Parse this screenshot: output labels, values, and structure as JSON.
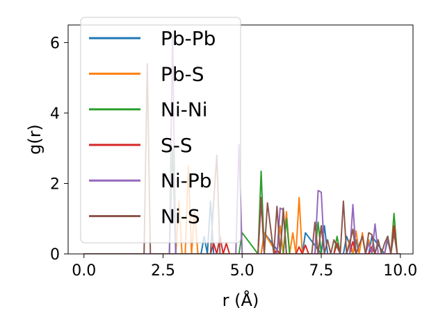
{
  "chart_data": {
    "type": "line",
    "xlabel": "r (Å)",
    "ylabel": "g(r)",
    "xlim": [
      -0.5,
      10.4
    ],
    "ylim": [
      0,
      6.5
    ],
    "xticks": [
      0.0,
      2.5,
      5.0,
      7.5,
      10.0
    ],
    "xtick_labels": [
      "0.0",
      "2.5",
      "5.0",
      "7.5",
      "10.0"
    ],
    "yticks": [
      0,
      2,
      4,
      6
    ],
    "ytick_labels": [
      "0",
      "2",
      "4",
      "6"
    ],
    "legend_position": "upper-left",
    "series": [
      {
        "name": "Pb-Pb",
        "color": "#1f77b4",
        "x": [
          0.0,
          3.7,
          3.8,
          3.9,
          4.0,
          4.1,
          4.2,
          5.6,
          5.7,
          6.2,
          6.3,
          6.4,
          6.9,
          7.0,
          7.5,
          7.6,
          7.7,
          8.2,
          8.3,
          8.5,
          8.6,
          8.7,
          9.0,
          9.1,
          9.5,
          9.6,
          9.7,
          10.0
        ],
        "values": [
          0,
          0,
          0.5,
          0,
          1.5,
          0,
          0,
          0,
          0.6,
          0,
          1.2,
          0,
          0,
          0.6,
          0,
          0.8,
          0,
          0,
          0.5,
          0,
          0.4,
          0,
          0,
          0.5,
          0,
          0.4,
          0,
          0
        ]
      },
      {
        "name": "Pb-S",
        "color": "#ff7f0e",
        "x": [
          0.0,
          2.9,
          3.0,
          3.1,
          3.2,
          3.3,
          3.4,
          3.5,
          3.6,
          3.7,
          5.6,
          5.7,
          6.1,
          6.2,
          6.3,
          6.4,
          6.5,
          6.6,
          6.7,
          6.8,
          6.9,
          7.4,
          7.5,
          7.6,
          7.7,
          8.3,
          8.4,
          8.5,
          8.6,
          8.7,
          8.8,
          8.9,
          9.0,
          9.1,
          9.5,
          9.6,
          9.7,
          9.8,
          10.0
        ],
        "values": [
          0,
          0,
          1.5,
          0,
          0,
          2.5,
          0,
          1.2,
          0,
          0,
          0,
          0.6,
          0,
          0.8,
          0,
          1.2,
          0,
          0.6,
          0,
          1.6,
          0,
          0,
          0.8,
          0,
          0,
          0,
          0.4,
          0,
          0.65,
          0,
          0.6,
          0,
          0.4,
          0,
          0,
          0.5,
          0,
          0,
          0
        ]
      },
      {
        "name": "Ni-Ni",
        "color": "#2ca02c",
        "x": [
          0.0,
          2.7,
          2.8,
          2.9,
          4.9,
          5.0,
          5.5,
          5.6,
          5.7,
          6.3,
          6.4,
          6.5,
          7.3,
          7.4,
          7.5,
          7.9,
          8.0,
          8.1,
          9.7,
          9.8,
          9.9,
          10.0
        ],
        "values": [
          0,
          0,
          3.0,
          0,
          0,
          0.6,
          0,
          2.35,
          0,
          0,
          1.0,
          0,
          0,
          0.9,
          0,
          0,
          0.5,
          0,
          0,
          1.15,
          0,
          0
        ]
      },
      {
        "name": "S-S",
        "color": "#d62728",
        "x": [
          0.0,
          4.0,
          4.1,
          4.2,
          4.3,
          4.4,
          4.5,
          4.6,
          5.5,
          5.6,
          5.7,
          6.0,
          6.1,
          6.2,
          6.7,
          6.8,
          6.9,
          7.0,
          7.1,
          7.2,
          7.9,
          8.0,
          8.1,
          8.4,
          8.5,
          8.6,
          9.0,
          9.1,
          9.2,
          9.7,
          9.8,
          9.9,
          10.0
        ],
        "values": [
          0,
          0,
          0.3,
          0,
          0.5,
          0,
          0.3,
          0,
          0,
          1.5,
          0,
          0,
          0.1,
          0,
          0,
          0.2,
          0,
          0.25,
          0,
          0,
          0,
          0.3,
          0,
          0,
          0.35,
          0,
          0,
          0.2,
          0,
          0,
          0.8,
          0,
          0
        ]
      },
      {
        "name": "Ni-Pb",
        "color": "#9467bd",
        "x": [
          0.0,
          2.7,
          2.8,
          2.9,
          4.8,
          4.9,
          5.0,
          6.1,
          6.2,
          6.3,
          6.4,
          7.3,
          7.4,
          7.5,
          7.6,
          8.4,
          8.5,
          8.6,
          8.9,
          9.0,
          9.1,
          9.2,
          9.3,
          9.5,
          9.6,
          9.7,
          10.0
        ],
        "values": [
          0,
          0,
          6.2,
          0,
          0,
          3.1,
          0,
          0,
          1.3,
          1.25,
          0,
          0,
          1.8,
          1.75,
          0,
          0,
          1.4,
          0,
          0,
          0.3,
          0,
          0.85,
          0,
          0,
          0.5,
          0,
          0
        ]
      },
      {
        "name": "Ni-S",
        "color": "#8c564b",
        "x": [
          0.0,
          1.9,
          2.0,
          2.1,
          2.2,
          4.0,
          4.1,
          4.2,
          4.3,
          4.4,
          5.5,
          5.6,
          5.7,
          5.8,
          6.0,
          6.1,
          6.2,
          6.3,
          6.4,
          7.2,
          7.3,
          7.4,
          7.5,
          7.6,
          7.7,
          7.8,
          7.9,
          8.1,
          8.2,
          8.3,
          8.4,
          8.5,
          8.6,
          8.8,
          8.9,
          9.0,
          9.1,
          9.2,
          9.3,
          9.4,
          9.5,
          9.6,
          9.7,
          9.8,
          9.9,
          10.0
        ],
        "values": [
          0,
          0,
          5.4,
          0,
          0,
          0,
          1.5,
          2.8,
          0,
          0,
          0,
          1.6,
          0,
          1.45,
          0,
          1.35,
          0,
          1.3,
          0,
          0,
          0.9,
          0,
          0.8,
          0,
          0.4,
          0,
          0.4,
          0,
          1.5,
          0,
          0.3,
          0.7,
          0,
          0.5,
          0,
          0.6,
          0.55,
          0,
          0.4,
          0,
          0.3,
          0.5,
          0,
          0.6,
          0,
          0
        ]
      }
    ]
  }
}
